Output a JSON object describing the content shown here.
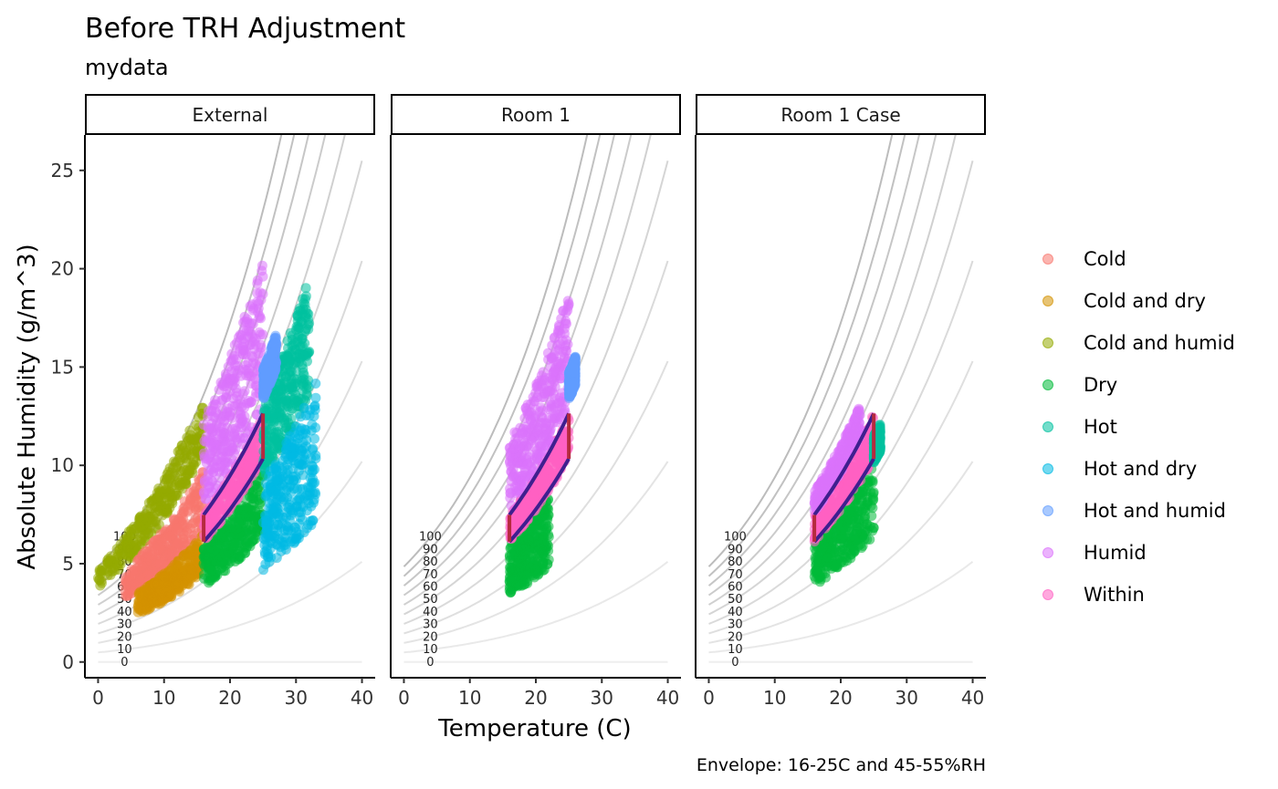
{
  "title": "Before TRH Adjustment",
  "subtitle": "mydata",
  "caption": "Envelope: 16-25C and 45-55%RH",
  "chart_data": {
    "type": "scatter",
    "xlabel": "Temperature (C)",
    "ylabel": "Absolute Humidity (g/m^3)",
    "xlim": [
      -2,
      42
    ],
    "ylim": [
      -0.8,
      26.8
    ],
    "x_ticks": [
      0,
      10,
      20,
      30,
      40
    ],
    "y_ticks": [
      0,
      5,
      10,
      15,
      20,
      25
    ],
    "grid": false,
    "legend_position": "right",
    "rh_lines": [
      0,
      10,
      20,
      30,
      40,
      50,
      60,
      70,
      80,
      90,
      100
    ],
    "rh_labels": [
      "0",
      "10",
      "20",
      "30",
      "40",
      "50",
      "60",
      "70",
      "80",
      "90",
      "100"
    ],
    "envelope": {
      "t_min": 16,
      "t_max": 25,
      "rh_min": 45,
      "rh_max": 55
    },
    "series": [
      {
        "name": "Cold",
        "color": "#F8766D"
      },
      {
        "name": "Cold and dry",
        "color": "#D39200"
      },
      {
        "name": "Cold and humid",
        "color": "#93AA00"
      },
      {
        "name": "Dry",
        "color": "#00BA38"
      },
      {
        "name": "Hot",
        "color": "#00C19F"
      },
      {
        "name": "Hot and dry",
        "color": "#00B9E3"
      },
      {
        "name": "Hot and humid",
        "color": "#619CFF"
      },
      {
        "name": "Humid",
        "color": "#DB72FB"
      },
      {
        "name": "Within",
        "color": "#FF61C3"
      }
    ],
    "panels": [
      {
        "label": "External",
        "clusters": [
          {
            "series": "Cold and humid",
            "t": [
              0,
              16
            ],
            "rh": [
              78,
              100
            ]
          },
          {
            "series": "Cold",
            "t": [
              4,
              16
            ],
            "rh": [
              50,
              72
            ]
          },
          {
            "series": "Cold and dry",
            "t": [
              6,
              16
            ],
            "rh": [
              33,
              48
            ]
          },
          {
            "series": "Dry",
            "t": [
              16,
              25
            ],
            "rh": [
              28,
              43
            ]
          },
          {
            "series": "Within",
            "t": [
              16,
              25
            ],
            "rh": [
              45,
              55
            ]
          },
          {
            "series": "Humid",
            "t": [
              16,
              25
            ],
            "rh": [
              57,
              90
            ]
          },
          {
            "series": "Hot",
            "t": [
              25,
              32
            ],
            "rh": [
              40,
              58
            ]
          },
          {
            "series": "Hot and dry",
            "t": [
              25,
              33
            ],
            "rh": [
              20,
              40
            ]
          },
          {
            "series": "Hot and humid",
            "t": [
              25,
              27
            ],
            "rh": [
              58,
              65
            ]
          }
        ]
      },
      {
        "label": "Room 1",
        "clusters": [
          {
            "series": "Dry",
            "t": [
              16,
              22
            ],
            "rh": [
              25,
              44
            ]
          },
          {
            "series": "Within",
            "t": [
              16,
              25
            ],
            "rh": [
              45,
              55
            ]
          },
          {
            "series": "Humid",
            "t": [
              16,
              25
            ],
            "rh": [
              57,
              82
            ]
          },
          {
            "series": "Hot and humid",
            "t": [
              25,
              26
            ],
            "rh": [
              58,
              64
            ]
          }
        ]
      },
      {
        "label": "Room 1 Case",
        "clusters": [
          {
            "series": "Dry",
            "t": [
              16,
              25
            ],
            "rh": [
              28,
              44
            ]
          },
          {
            "series": "Within",
            "t": [
              16,
              25
            ],
            "rh": [
              45,
              55
            ]
          },
          {
            "series": "Humid",
            "t": [
              16,
              23
            ],
            "rh": [
              56,
              64
            ]
          },
          {
            "series": "Hot",
            "t": [
              25,
              26
            ],
            "rh": [
              44,
              50
            ]
          }
        ]
      }
    ]
  }
}
